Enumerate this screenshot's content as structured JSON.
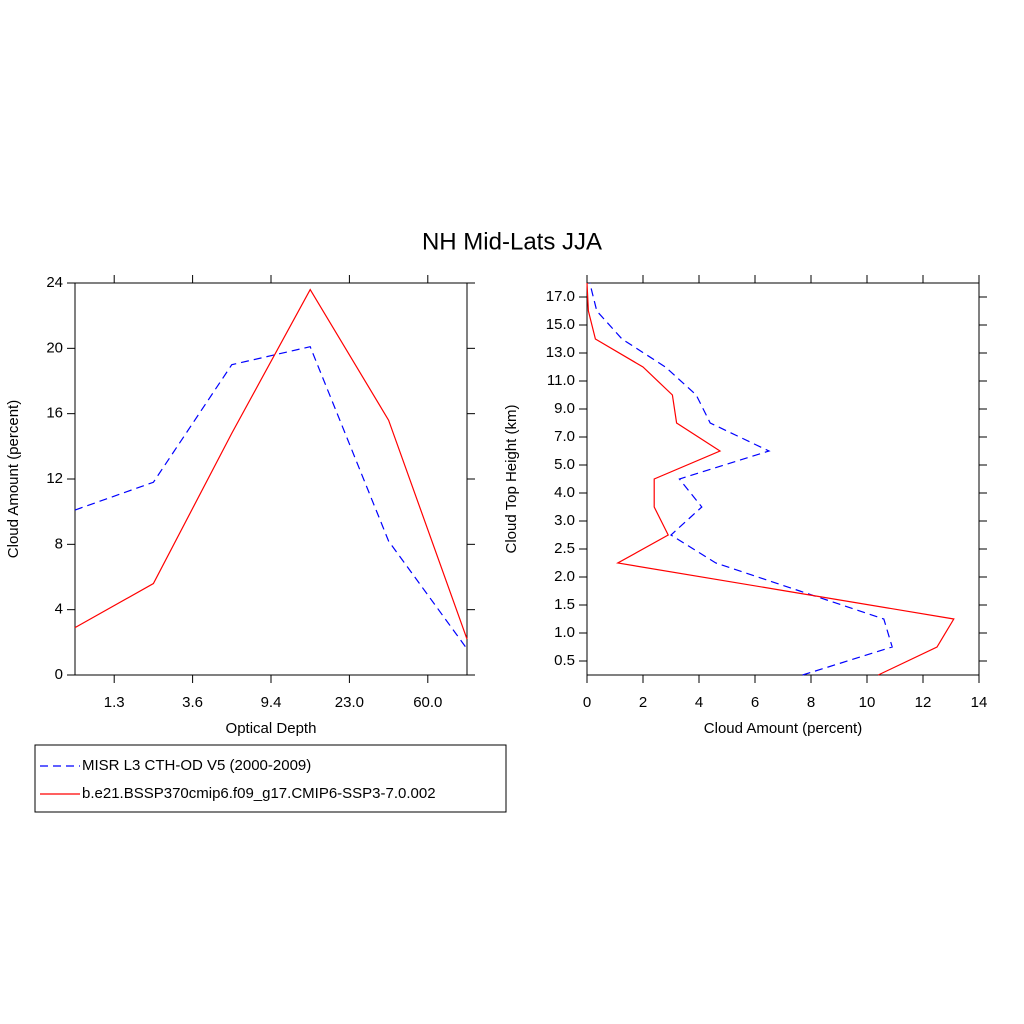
{
  "title": "NH Mid-Lats JJA",
  "chart_data": [
    {
      "type": "line",
      "x_label": "Optical Depth",
      "y_label": "Cloud Amount (percent)",
      "x": [
        0,
        1,
        2,
        3,
        4,
        5
      ],
      "xlim": [
        0,
        5
      ],
      "xticks": [
        {
          "value": 0.5,
          "label": "1.3"
        },
        {
          "value": 1.5,
          "label": "3.6"
        },
        {
          "value": 2.5,
          "label": "9.4"
        },
        {
          "value": 3.5,
          "label": "23.0"
        },
        {
          "value": 4.5,
          "label": "60.0"
        }
      ],
      "ylim": [
        0,
        24
      ],
      "yticks": [
        0,
        4,
        8,
        12,
        16,
        20,
        24
      ],
      "series": [
        {
          "name": "MISR L3 CTH-OD V5 (2000-2009)",
          "color": "#0000ff",
          "dashed": true,
          "values": [
            10.1,
            11.8,
            19.0,
            20.1,
            8.2,
            1.6
          ]
        },
        {
          "name": "b.e21.BSSP370cmip6.f09_g17.CMIP6-SSP3-7.0.002",
          "color": "#ff0000",
          "dashed": false,
          "values": [
            2.9,
            5.6,
            14.8,
            23.6,
            15.6,
            2.2
          ]
        }
      ]
    },
    {
      "type": "profile",
      "x_label": "Cloud Amount (percent)",
      "y_label": "Cloud Top Height (km)",
      "y": [
        0,
        1,
        2,
        3,
        4,
        5,
        6,
        7,
        8,
        9,
        10,
        11,
        12,
        13,
        14
      ],
      "ylim": [
        0,
        14
      ],
      "yticks": [
        {
          "value": 0.5,
          "label": "0.5"
        },
        {
          "value": 1.5,
          "label": "1.0"
        },
        {
          "value": 2.5,
          "label": "1.5"
        },
        {
          "value": 3.5,
          "label": "2.0"
        },
        {
          "value": 4.5,
          "label": "2.5"
        },
        {
          "value": 5.5,
          "label": "3.0"
        },
        {
          "value": 6.5,
          "label": "4.0"
        },
        {
          "value": 7.5,
          "label": "5.0"
        },
        {
          "value": 8.5,
          "label": "7.0"
        },
        {
          "value": 9.5,
          "label": "9.0"
        },
        {
          "value": 10.5,
          "label": "11.0"
        },
        {
          "value": 11.5,
          "label": "13.0"
        },
        {
          "value": 12.5,
          "label": "15.0"
        },
        {
          "value": 13.5,
          "label": "17.0"
        }
      ],
      "xlim": [
        0,
        14
      ],
      "xticks": [
        0,
        2,
        4,
        6,
        8,
        10,
        12,
        14
      ],
      "series": [
        {
          "color": "#0000ff",
          "dashed": true,
          "values": [
            7.7,
            10.9,
            10.6,
            7.6,
            4.6,
            3.0,
            4.1,
            3.3,
            6.5,
            4.4,
            3.9,
            2.8,
            1.25,
            0.35,
            0.1
          ]
        },
        {
          "color": "#ff0000",
          "dashed": false,
          "values": [
            10.4,
            12.5,
            13.1,
            7.1,
            1.1,
            2.9,
            2.4,
            2.4,
            4.75,
            3.2,
            3.05,
            2.0,
            0.3,
            0.05,
            0
          ]
        }
      ]
    }
  ]
}
